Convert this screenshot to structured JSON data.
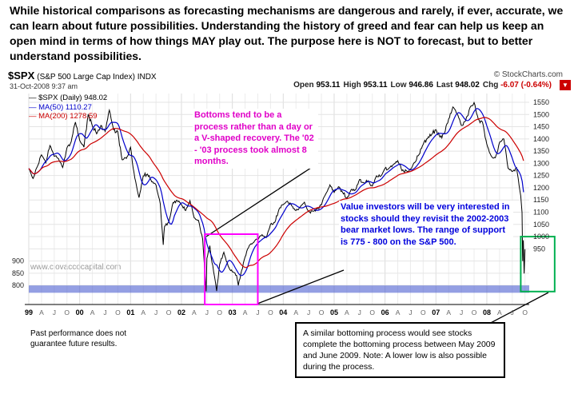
{
  "intro": "While historical comparisons as forecasting mechanisms are dangerous and rarely, if ever, accurate, we can learn about future possibilities.  Understanding the history of greed and fear can help us keep an open mind in terms of how things MAY play out.  The purpose here is NOT to forecast, but to better understand possibilities.",
  "chart_header": {
    "symbol": "$SPX",
    "description": "(S&P 500 Large Cap Index) INDX",
    "credit": "© StockCharts.com",
    "datetime": "31-Oct-2008 9:37 am",
    "ohlc": [
      [
        "Open",
        "953.11"
      ],
      [
        "High",
        "953.11"
      ],
      [
        "Low",
        "946.86"
      ],
      [
        "Last",
        "948.02"
      ],
      [
        "Chg",
        "-6.07 (-0.64%)"
      ]
    ],
    "chg_color": "#cc0000",
    "menu_icon": "dropdown-arrow"
  },
  "legend": [
    {
      "label": "— $SPX (Daily) 948.02",
      "color": "#000000"
    },
    {
      "label": "— MA(50) 1110.27",
      "color": "#0000cc"
    },
    {
      "label": "— MA(200) 1278.59",
      "color": "#cc0000"
    }
  ],
  "watermark": "www.ciovaccocapital.com",
  "disclaimer": "Past performance does not guarantee future results.",
  "annotations": {
    "bottoms_process": "Bottoms tend to be a process rather than a day or a V-shaped recovery.  The '02 - '03 process took almost 8 months.",
    "value_investors": "Value investors will be very interested in stocks should they revisit the 2002-2003 bear market lows.  The range of support is 775 - 800 on the S&P 500.",
    "similar_bottoming": "A similar bottoming process would see stocks complete the bottoming process between May 2009 and June 2009.  Note: A lower low is also possible during the process."
  },
  "colors": {
    "price": "#000000",
    "ma50": "#0000cc",
    "ma200": "#cc0000",
    "magenta_annotation": "#e000c8",
    "blue_annotation": "#0000dd",
    "green_highlight": "#00b050",
    "magenta_highlight": "#ff00ff",
    "support_band": "#4d5fd1"
  },
  "chart_data": {
    "type": "line",
    "title": "$SPX S&P 500 Large Cap Index (Daily) 1999-2008",
    "x_unit": "months since Jan 1999",
    "x_range": [
      0,
      118
    ],
    "y_range": [
      722,
      1586
    ],
    "grid": true,
    "x_years": [
      "99",
      "00",
      "01",
      "02",
      "03",
      "04",
      "05",
      "06",
      "07",
      "08"
    ],
    "x_month_letters": [
      "A",
      "J",
      "O"
    ],
    "y_ticks_right": [
      950,
      1000,
      1050,
      1100,
      1150,
      1200,
      1250,
      1300,
      1350,
      1400,
      1450,
      1500,
      1550
    ],
    "y_ticks_left": [
      800,
      850,
      900
    ],
    "series": [
      {
        "name": "$SPX Daily close",
        "color": "#000000",
        "points": [
          [
            0,
            1279
          ],
          [
            1,
            1238
          ],
          [
            2,
            1286
          ],
          [
            3,
            1335
          ],
          [
            4,
            1302
          ],
          [
            5,
            1373
          ],
          [
            6,
            1329
          ],
          [
            7,
            1320
          ],
          [
            8,
            1283
          ],
          [
            9,
            1363
          ],
          [
            10,
            1389
          ],
          [
            11,
            1469
          ],
          [
            12,
            1394
          ],
          [
            13,
            1366
          ],
          [
            14,
            1499
          ],
          [
            15,
            1452
          ],
          [
            16,
            1421
          ],
          [
            17,
            1455
          ],
          [
            18,
            1431
          ],
          [
            19,
            1518
          ],
          [
            20,
            1437
          ],
          [
            21,
            1429
          ],
          [
            22,
            1315
          ],
          [
            23,
            1320
          ],
          [
            24,
            1366
          ],
          [
            25,
            1240
          ],
          [
            26,
            1160
          ],
          [
            27,
            1249
          ],
          [
            28,
            1256
          ],
          [
            29,
            1224
          ],
          [
            30,
            1211
          ],
          [
            31,
            1134
          ],
          [
            31.7,
            966
          ],
          [
            32,
            1041
          ],
          [
            33,
            1060
          ],
          [
            34,
            1139
          ],
          [
            35,
            1148
          ],
          [
            36,
            1130
          ],
          [
            37,
            1107
          ],
          [
            38,
            1147
          ],
          [
            39,
            1077
          ],
          [
            40,
            1067
          ],
          [
            41,
            990
          ],
          [
            41.8,
            776
          ],
          [
            42,
            911
          ],
          [
            42.7,
            963
          ],
          [
            43,
            916
          ],
          [
            44,
            815
          ],
          [
            44.3,
            777
          ],
          [
            45,
            886
          ],
          [
            46,
            936
          ],
          [
            47,
            880
          ],
          [
            48,
            856
          ],
          [
            49,
            841
          ],
          [
            49.4,
            800
          ],
          [
            50,
            848
          ],
          [
            51,
            917
          ],
          [
            52,
            964
          ],
          [
            53,
            975
          ],
          [
            54,
            990
          ],
          [
            55,
            1008
          ],
          [
            56,
            996
          ],
          [
            57,
            1051
          ],
          [
            58,
            1058
          ],
          [
            59,
            1112
          ],
          [
            60,
            1131
          ],
          [
            61,
            1145
          ],
          [
            62,
            1126
          ],
          [
            63,
            1107
          ],
          [
            64,
            1121
          ],
          [
            65,
            1141
          ],
          [
            66,
            1102
          ],
          [
            67,
            1104
          ],
          [
            68,
            1115
          ],
          [
            69,
            1130
          ],
          [
            70,
            1174
          ],
          [
            71,
            1212
          ],
          [
            72,
            1181
          ],
          [
            73,
            1204
          ],
          [
            74,
            1181
          ],
          [
            75,
            1157
          ],
          [
            76,
            1192
          ],
          [
            77,
            1191
          ],
          [
            78,
            1234
          ],
          [
            79,
            1220
          ],
          [
            80,
            1229
          ],
          [
            81,
            1207
          ],
          [
            82,
            1249
          ],
          [
            83,
            1248
          ],
          [
            84,
            1280
          ],
          [
            85,
            1281
          ],
          [
            86,
            1295
          ],
          [
            87,
            1311
          ],
          [
            88,
            1270
          ],
          [
            89,
            1270
          ],
          [
            90,
            1277
          ],
          [
            91,
            1304
          ],
          [
            92,
            1336
          ],
          [
            93,
            1378
          ],
          [
            94,
            1401
          ],
          [
            95,
            1418
          ],
          [
            96,
            1438
          ],
          [
            97,
            1407
          ],
          [
            98,
            1421
          ],
          [
            99,
            1482
          ],
          [
            100,
            1531
          ],
          [
            101,
            1503
          ],
          [
            102,
            1455
          ],
          [
            103,
            1474
          ],
          [
            104,
            1527
          ],
          [
            105,
            1549
          ],
          [
            106,
            1481
          ],
          [
            107,
            1468
          ],
          [
            108,
            1379
          ],
          [
            109,
            1331
          ],
          [
            110,
            1323
          ],
          [
            111,
            1386
          ],
          [
            112,
            1400
          ],
          [
            113,
            1280
          ],
          [
            114,
            1267
          ],
          [
            115,
            1283
          ],
          [
            116,
            1166
          ],
          [
            116.3,
            1099
          ],
          [
            116.45,
            900
          ],
          [
            116.6,
            985
          ],
          [
            116.8,
            849
          ],
          [
            117,
            948
          ]
        ]
      },
      {
        "name": "MA(50)",
        "color": "#0000cc",
        "derived": "moving_average",
        "window_months": 2.5,
        "last_value": 1110.27
      },
      {
        "name": "MA(200)",
        "color": "#cc0000",
        "derived": "moving_average",
        "window_months": 10,
        "last_value": 1278.59
      }
    ],
    "support_band": {
      "label": "775 - 800 support zone",
      "y": [
        770,
        800
      ],
      "color": "#4d5fd1",
      "opacity": 0.6
    },
    "highlight_boxes": [
      {
        "name": "2002-2003-bottom",
        "color": "#ff00ff",
        "x": [
          41.5,
          54
        ],
        "y": [
          722,
          1010
        ]
      },
      {
        "name": "2008-bottom",
        "color": "#00b050",
        "x": [
          116,
          124
        ],
        "y": [
          775,
          1000
        ]
      }
    ]
  }
}
